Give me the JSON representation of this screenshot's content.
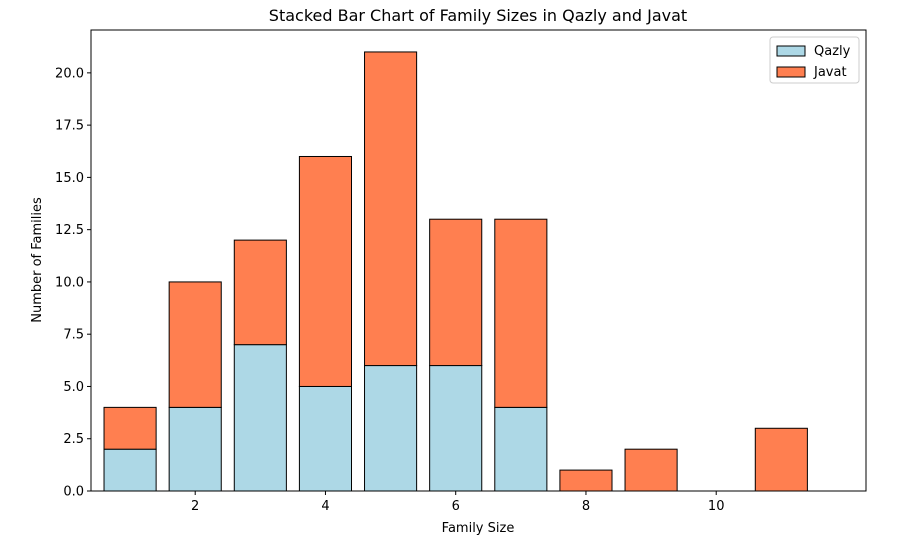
{
  "chart_data": {
    "type": "bar",
    "stacked": true,
    "title": "Stacked Bar Chart of Family Sizes in Qazly and Javat",
    "xlabel": "Family Size",
    "ylabel": "Number of Families",
    "categories": [
      1,
      2,
      3,
      4,
      5,
      6,
      7,
      8,
      9,
      10,
      11
    ],
    "series": [
      {
        "name": "Qazly",
        "color": "#add8e6",
        "values": [
          2,
          4,
          7,
          5,
          6,
          6,
          4,
          0,
          0,
          0,
          0
        ]
      },
      {
        "name": "Javat",
        "color": "#ff7f50",
        "values": [
          2,
          6,
          5,
          11,
          15,
          7,
          9,
          1,
          2,
          0,
          3
        ]
      }
    ],
    "xlim": [
      0.4,
      12.3
    ],
    "ylim": [
      0,
      22.05
    ],
    "x_ticks": [
      2,
      4,
      6,
      8,
      10
    ],
    "y_ticks": [
      0.0,
      2.5,
      5.0,
      7.5,
      10.0,
      12.5,
      15.0,
      17.5,
      20.0
    ],
    "legend_position": "top-right",
    "grid": false
  }
}
